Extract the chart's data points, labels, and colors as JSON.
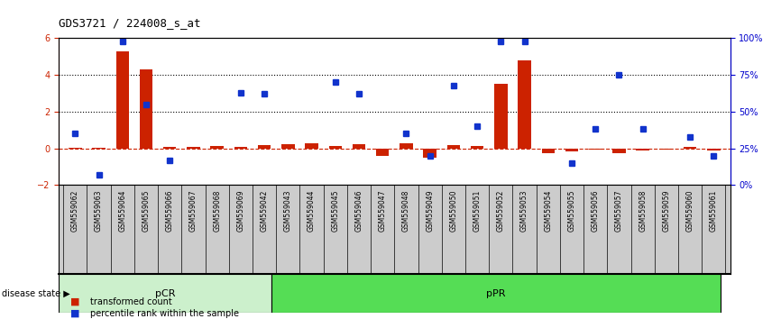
{
  "title": "GDS3721 / 224008_s_at",
  "samples": [
    "GSM559062",
    "GSM559063",
    "GSM559064",
    "GSM559065",
    "GSM559066",
    "GSM559067",
    "GSM559068",
    "GSM559069",
    "GSM559042",
    "GSM559043",
    "GSM559044",
    "GSM559045",
    "GSM559046",
    "GSM559047",
    "GSM559048",
    "GSM559049",
    "GSM559050",
    "GSM559051",
    "GSM559052",
    "GSM559053",
    "GSM559054",
    "GSM559055",
    "GSM559056",
    "GSM559057",
    "GSM559058",
    "GSM559059",
    "GSM559060",
    "GSM559061"
  ],
  "transformed_count": [
    0.05,
    0.05,
    5.3,
    4.3,
    0.1,
    0.08,
    0.12,
    0.1,
    0.18,
    0.22,
    0.28,
    0.12,
    0.22,
    -0.4,
    0.28,
    -0.5,
    0.18,
    0.12,
    3.5,
    4.8,
    -0.28,
    -0.18,
    -0.08,
    -0.25,
    -0.12,
    -0.08,
    0.08,
    -0.12
  ],
  "percentile_rank": [
    35,
    7,
    98,
    55,
    17,
    null,
    null,
    63,
    62,
    null,
    null,
    70,
    62,
    null,
    35,
    20,
    68,
    40,
    98,
    98,
    null,
    15,
    38,
    75,
    38,
    null,
    33,
    20
  ],
  "pCR_count": 9,
  "bar_color": "#CC2200",
  "dot_color": "#1133CC",
  "ylim_left": [
    -2,
    6
  ],
  "ylim_right": [
    0,
    100
  ],
  "yticks_left": [
    -2,
    0,
    2,
    4,
    6
  ],
  "yticks_right": [
    0,
    25,
    50,
    75,
    100
  ],
  "ytick_right_labels": [
    "0%",
    "25%",
    "50%",
    "75%",
    "100%"
  ],
  "hlines_dotted": [
    2,
    4
  ],
  "hline_zero": 0,
  "background_color": "#ffffff",
  "pCR_color": "#ccf0cc",
  "pPR_color": "#55dd55",
  "xlabel_bg": "#cccccc",
  "left_tick_color": "#CC2200",
  "right_tick_color": "#0000CC"
}
